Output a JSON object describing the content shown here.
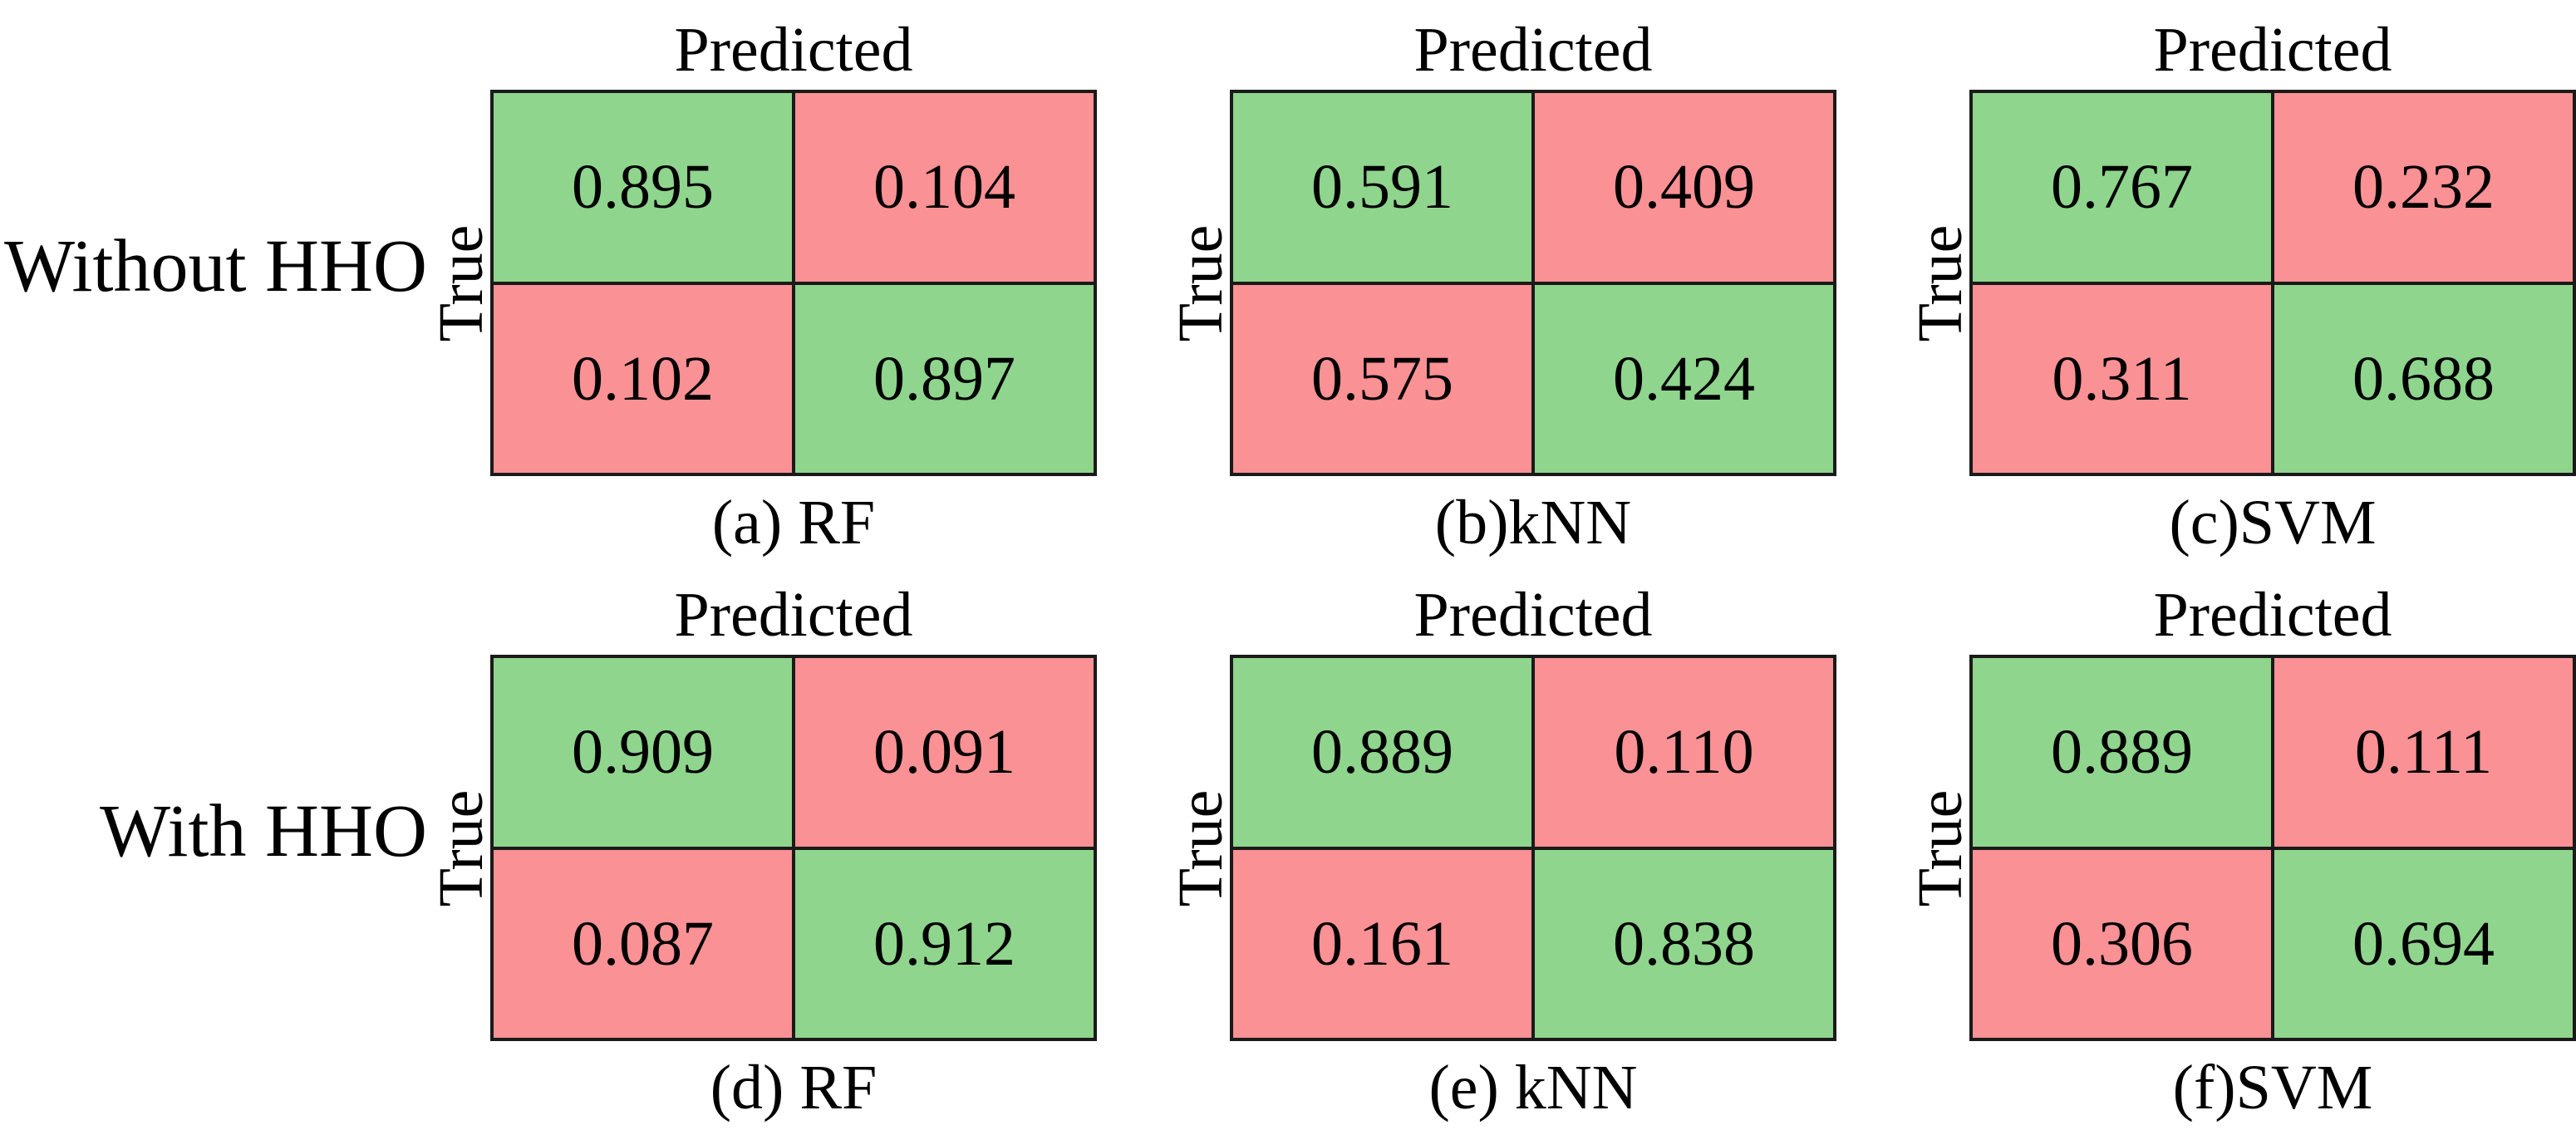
{
  "figure": {
    "axis_labels": {
      "predicted": "Predicted",
      "true": "True"
    },
    "rows": [
      {
        "label": "Without HHO",
        "panels": [
          {
            "caption": "(a) RF",
            "cells": [
              [
                "0.895",
                "0.104"
              ],
              [
                "0.102",
                "0.897"
              ]
            ]
          },
          {
            "caption": "(b)kNN",
            "cells": [
              [
                "0.591",
                "0.409"
              ],
              [
                "0.575",
                "0.424"
              ]
            ]
          },
          {
            "caption": "(c)SVM",
            "cells": [
              [
                "0.767",
                "0.232"
              ],
              [
                "0.311",
                "0.688"
              ]
            ]
          }
        ]
      },
      {
        "label": "With HHO",
        "panels": [
          {
            "caption": "(d) RF",
            "cells": [
              [
                "0.909",
                "0.091"
              ],
              [
                "0.087",
                "0.912"
              ]
            ]
          },
          {
            "caption": "(e) kNN",
            "cells": [
              [
                "0.889",
                "0.110"
              ],
              [
                "0.161",
                "0.838"
              ]
            ]
          },
          {
            "caption": "(f)SVM",
            "cells": [
              [
                "0.889",
                "0.111"
              ],
              [
                "0.306",
                "0.694"
              ]
            ]
          }
        ]
      }
    ]
  },
  "colors": {
    "correct_green": "#8fd58d",
    "incorrect_red": "#fa9194",
    "border": "#1a1a1a"
  },
  "chart_data": [
    {
      "type": "heatmap",
      "title": "(a) RF",
      "group": "Without HHO",
      "xlabel": "Predicted",
      "ylabel": "True",
      "matrix": [
        [
          0.895,
          0.104
        ],
        [
          0.102,
          0.897
        ]
      ]
    },
    {
      "type": "heatmap",
      "title": "(b)kNN",
      "group": "Without HHO",
      "xlabel": "Predicted",
      "ylabel": "True",
      "matrix": [
        [
          0.591,
          0.409
        ],
        [
          0.575,
          0.424
        ]
      ]
    },
    {
      "type": "heatmap",
      "title": "(c)SVM",
      "group": "Without HHO",
      "xlabel": "Predicted",
      "ylabel": "True",
      "matrix": [
        [
          0.767,
          0.232
        ],
        [
          0.311,
          0.688
        ]
      ]
    },
    {
      "type": "heatmap",
      "title": "(d) RF",
      "group": "With HHO",
      "xlabel": "Predicted",
      "ylabel": "True",
      "matrix": [
        [
          0.909,
          0.091
        ],
        [
          0.087,
          0.912
        ]
      ]
    },
    {
      "type": "heatmap",
      "title": "(e) kNN",
      "group": "With HHO",
      "xlabel": "Predicted",
      "ylabel": "True",
      "matrix": [
        [
          0.889,
          0.11
        ],
        [
          0.161,
          0.838
        ]
      ]
    },
    {
      "type": "heatmap",
      "title": "(f)SVM",
      "group": "With HHO",
      "xlabel": "Predicted",
      "ylabel": "True",
      "matrix": [
        [
          0.889,
          0.111
        ],
        [
          0.306,
          0.694
        ]
      ]
    }
  ]
}
